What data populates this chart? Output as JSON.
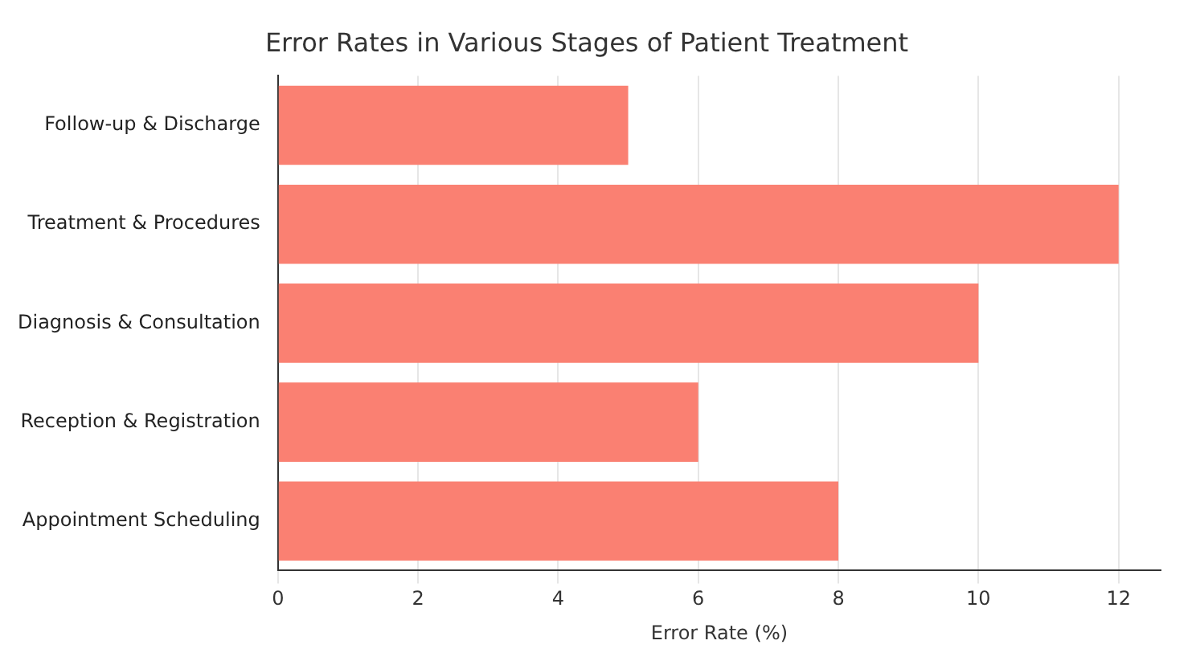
{
  "chart_data": {
    "type": "bar",
    "orientation": "horizontal",
    "title": "Error Rates in Various Stages of Patient Treatment",
    "xlabel": "Error Rate (%)",
    "categories": [
      "Follow-up & Discharge",
      "Treatment & Procedures",
      "Diagnosis & Consultation",
      "Reception & Registration",
      "Appointment Scheduling"
    ],
    "values": [
      5,
      12,
      10,
      6,
      8
    ],
    "color": "#fa8072",
    "xlim": [
      0,
      12.6
    ],
    "xticks": [
      0,
      2,
      4,
      6,
      8,
      10,
      12
    ],
    "grid": "x"
  }
}
